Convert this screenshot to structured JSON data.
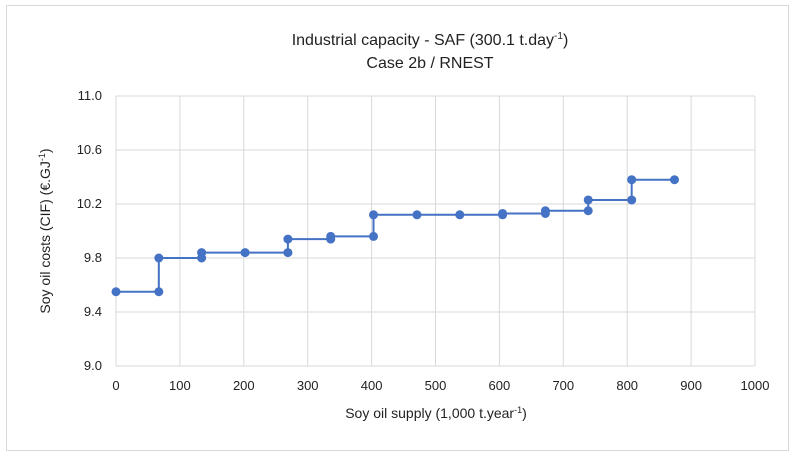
{
  "chart_data": {
    "type": "line",
    "title_main": "Industrial capacity - SAF (300.1 t.day",
    "title_sup": "-1",
    "title_end": ")",
    "subtitle": "Case 2b / RNEST",
    "xlabel_main": "Soy oil supply (1,000 t.year",
    "xlabel_sup": "-1",
    "xlabel_end": ")",
    "ylabel_main": "Soy oil costs (CIF) (€.GJ",
    "ylabel_sup": "-1",
    "ylabel_end": ")",
    "xlim": [
      0,
      1000
    ],
    "ylim": [
      9.0,
      11.0
    ],
    "x_ticks": [
      "0",
      "100",
      "200",
      "300",
      "400",
      "500",
      "600",
      "700",
      "800",
      "900",
      "1000"
    ],
    "y_ticks": [
      "9.0",
      "9.4",
      "9.8",
      "10.2",
      "10.6",
      "11.0"
    ],
    "grid": true,
    "series_color": "#4472c4",
    "series": [
      {
        "points": [
          [
            0,
            9.55
          ],
          [
            67,
            9.55
          ],
          [
            67,
            9.8
          ],
          [
            134,
            9.8
          ],
          [
            134,
            9.84
          ],
          [
            202,
            9.84
          ],
          [
            269,
            9.84
          ],
          [
            269,
            9.94
          ],
          [
            336,
            9.94
          ],
          [
            336,
            9.96
          ],
          [
            403,
            9.96
          ],
          [
            403,
            10.12
          ],
          [
            471,
            10.12
          ],
          [
            538,
            10.12
          ],
          [
            605,
            10.12
          ],
          [
            605,
            10.13
          ],
          [
            672,
            10.13
          ],
          [
            672,
            10.15
          ],
          [
            739,
            10.15
          ],
          [
            739,
            10.23
          ],
          [
            807,
            10.23
          ],
          [
            807,
            10.38
          ],
          [
            874,
            10.38
          ]
        ]
      }
    ]
  }
}
